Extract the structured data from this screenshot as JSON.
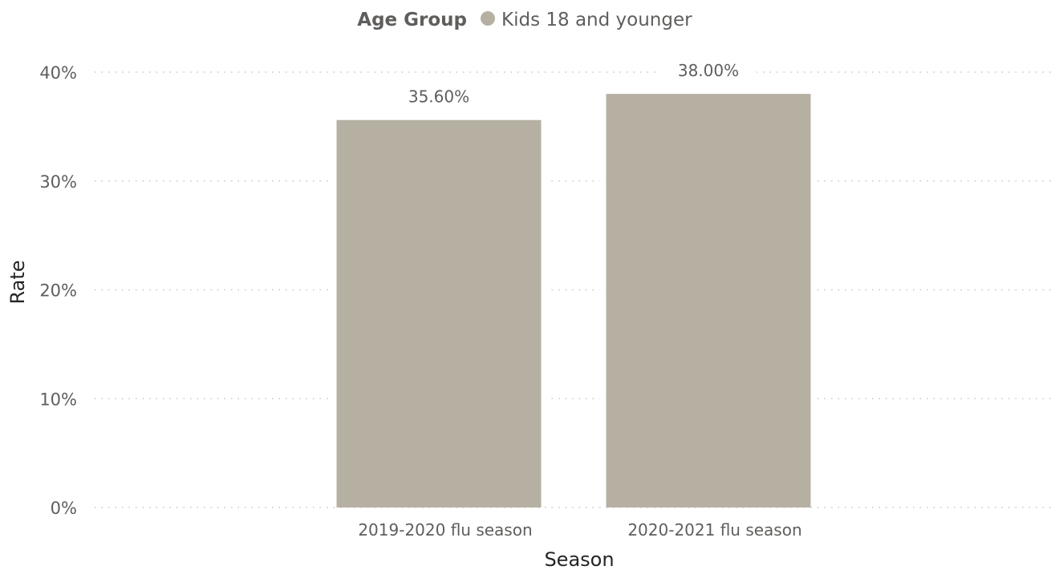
{
  "legend": {
    "title": "Age Group",
    "label": "Kids 18 and younger"
  },
  "chart_data": {
    "type": "bar",
    "title": "",
    "xlabel": "Season",
    "ylabel": "Rate",
    "categories": [
      "2019-2020 flu season",
      "2020-2021 flu season"
    ],
    "series": [
      {
        "name": "Kids 18 and younger",
        "values": [
          35.6,
          38.0
        ],
        "data_labels": [
          "35.60%",
          "38.00%"
        ],
        "color": "#b6b0a3"
      }
    ],
    "ylim": [
      0,
      40
    ],
    "y_ticks": [
      0,
      10,
      20,
      30,
      40
    ],
    "y_tick_labels": [
      "0%",
      "10%",
      "20%",
      "30%",
      "40%"
    ],
    "grid": true,
    "legend_position": "top-center"
  }
}
